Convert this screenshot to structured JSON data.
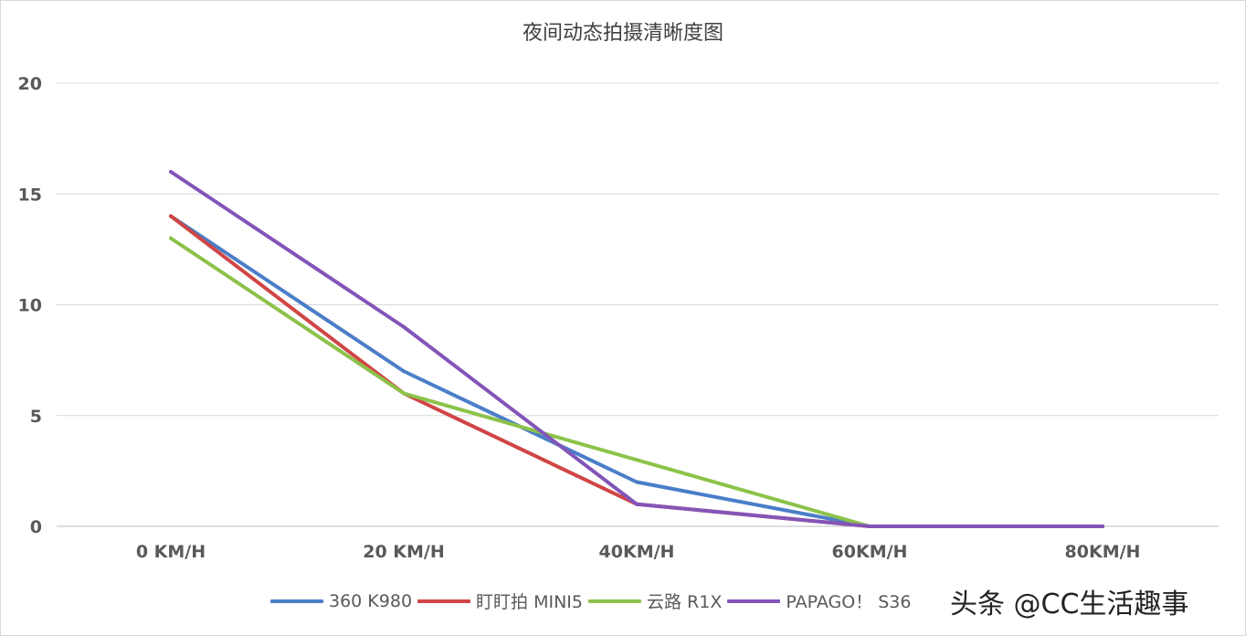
{
  "chart_data": {
    "type": "line",
    "title": "夜间动态拍摄清晰度图",
    "categories": [
      "0 KM/H",
      "20 KM/H",
      "40KM/H",
      "60KM/H",
      "80KM/H"
    ],
    "series": [
      {
        "name": "360 K980",
        "color": "#4a7ec8",
        "values": [
          14,
          7,
          2,
          0,
          0
        ]
      },
      {
        "name": "盯盯拍 MINI5",
        "color": "#d04545",
        "values": [
          14,
          6,
          1,
          0,
          0
        ]
      },
      {
        "name": "云路 R1X",
        "color": "#8cc24a",
        "values": [
          13,
          6,
          3,
          0,
          0
        ]
      },
      {
        "name": "PAPAGO！ S36",
        "color": "#8355b8",
        "values": [
          16,
          9,
          1,
          0,
          0
        ]
      }
    ],
    "ylim": [
      0,
      20
    ],
    "yticks": [
      0,
      5,
      10,
      15,
      20
    ],
    "grid": true,
    "legend_position": "bottom"
  },
  "watermark": "头条 @CC生活趣事"
}
